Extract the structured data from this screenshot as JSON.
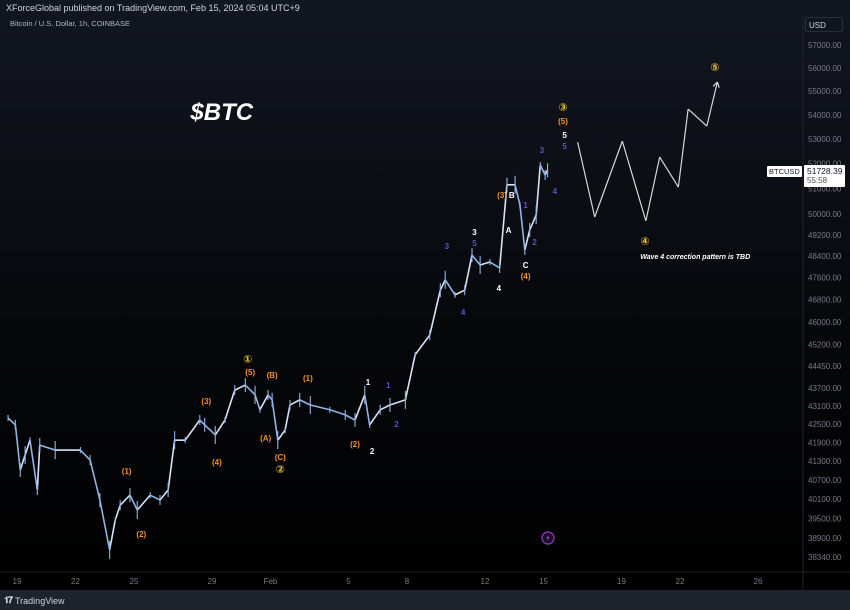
{
  "header": {
    "published": "XForceGlobal published on TradingView.com, Feb 15, 2024 05:04 UTC+9",
    "symbol": "Bitcoin / U.S. Dollar, 1h, COINBASE"
  },
  "price_axis": {
    "currency": "USD"
  },
  "last_price": {
    "symbol": "BTCUSD",
    "price": "51728.39",
    "countdown": "55:58"
  },
  "footer": {
    "brand": "TradingView"
  },
  "colors": {
    "price": "#8fb4e6",
    "orange": "#f0922f",
    "yellow": "#e3c02c",
    "purple": "#5b52c9",
    "white": "#ffffff",
    "projection": "#d8d8d8"
  },
  "chart_data": {
    "type": "line",
    "title": "$BTC",
    "y_scale": "log",
    "ylim": [
      38000,
      57500
    ],
    "grid": false,
    "y_ticks": [
      "57000.00",
      "56000.00",
      "55000.00",
      "54000.00",
      "53000.00",
      "52000.00",
      "51000.00",
      "50000.00",
      "49200.00",
      "48400.00",
      "47600.00",
      "46800.00",
      "46000.00",
      "45200.00",
      "44450.00",
      "43700.00",
      "43100.00",
      "42500.00",
      "41900.00",
      "41300.00",
      "40700.00",
      "40100.00",
      "39500.00",
      "38900.00",
      "38340.00"
    ],
    "x_ticks": [
      {
        "label": "19",
        "date": "2024-01-19"
      },
      {
        "label": "22",
        "date": "2024-01-22"
      },
      {
        "label": "25",
        "date": "2024-01-25"
      },
      {
        "label": "29",
        "date": "2024-01-29"
      },
      {
        "label": "Feb",
        "date": "2024-02-01"
      },
      {
        "label": "5",
        "date": "2024-02-05"
      },
      {
        "label": "8",
        "date": "2024-02-08"
      },
      {
        "label": "12",
        "date": "2024-02-12"
      },
      {
        "label": "15",
        "date": "2024-02-15"
      },
      {
        "label": "19",
        "date": "2024-02-19"
      },
      {
        "label": "22",
        "date": "2024-02-22"
      },
      {
        "label": "26",
        "date": "2024-02-26"
      }
    ],
    "series": [
      {
        "points": [
          [
            "2024-01-18 13:00",
            42700
          ],
          [
            "2024-01-18 22:00",
            42470
          ],
          [
            "2024-01-19 04:00",
            41010
          ],
          [
            "2024-01-19 10:00",
            41490
          ],
          [
            "2024-01-19 16:00",
            41970
          ],
          [
            "2024-01-20 01:00",
            40380
          ],
          [
            "2024-01-20 04:00",
            41810
          ],
          [
            "2024-01-20 23:00",
            41650
          ],
          [
            "2024-01-22 06:00",
            41650
          ],
          [
            "2024-01-22 18:00",
            41330
          ],
          [
            "2024-01-23 06:00",
            40070
          ],
          [
            "2024-01-23 18:00",
            38550
          ],
          [
            "2024-01-24 01:00",
            39460
          ],
          [
            "2024-01-24 07:00",
            39910
          ],
          [
            "2024-01-24 19:00",
            40220
          ],
          [
            "2024-01-25 04:00",
            39760
          ],
          [
            "2024-01-25 20:00",
            40220
          ],
          [
            "2024-01-26 08:00",
            40070
          ],
          [
            "2024-01-26 18:00",
            40380
          ],
          [
            "2024-01-27 02:00",
            41970
          ],
          [
            "2024-01-27 15:00",
            41970
          ],
          [
            "2024-01-28 09:00",
            42630
          ],
          [
            "2024-01-28 15:00",
            42470
          ],
          [
            "2024-01-29 04:00",
            42140
          ],
          [
            "2024-01-29 16:00",
            42630
          ],
          [
            "2024-01-30 04:00",
            43630
          ],
          [
            "2024-01-30 17:00",
            43800
          ],
          [
            "2024-01-31 05:00",
            43470
          ],
          [
            "2024-01-31 11:00",
            42970
          ],
          [
            "2024-01-31 21:00",
            43470
          ],
          [
            "2024-02-01 02:00",
            43300
          ],
          [
            "2024-02-01 09:00",
            41970
          ],
          [
            "2024-02-01 18:00",
            42300
          ],
          [
            "2024-02-02 00:00",
            43130
          ],
          [
            "2024-02-02 12:00",
            43300
          ],
          [
            "2024-02-03 01:00",
            43130
          ],
          [
            "2024-02-04 01:00",
            42970
          ],
          [
            "2024-02-04 20:00",
            42800
          ],
          [
            "2024-02-05 08:00",
            42630
          ],
          [
            "2024-02-05 20:00",
            43470
          ],
          [
            "2024-02-06 02:00",
            42470
          ],
          [
            "2024-02-06 15:00",
            42970
          ],
          [
            "2024-02-07 03:00",
            43130
          ],
          [
            "2024-02-07 22:00",
            43300
          ],
          [
            "2024-02-08 10:00",
            44840
          ],
          [
            "2024-02-09 04:00",
            45530
          ],
          [
            "2024-02-09 17:00",
            47140
          ],
          [
            "2024-02-09 23:00",
            47520
          ],
          [
            "2024-02-10 11:00",
            46970
          ],
          [
            "2024-02-10 23:00",
            47140
          ],
          [
            "2024-02-11 08:00",
            48440
          ],
          [
            "2024-02-11 18:00",
            48070
          ],
          [
            "2024-02-12 06:00",
            48180
          ],
          [
            "2024-02-12 18:00",
            47960
          ],
          [
            "2024-02-13 03:00",
            51150
          ],
          [
            "2024-02-13 13:00",
            51150
          ],
          [
            "2024-02-13 19:00",
            50360
          ],
          [
            "2024-02-14 01:00",
            48630
          ],
          [
            "2024-02-14 07:00",
            49390
          ],
          [
            "2024-02-14 15:00",
            49970
          ],
          [
            "2024-02-14 20:00",
            51940
          ],
          [
            "2024-02-15 02:00",
            51540
          ],
          [
            "2024-02-15 05:00",
            51728.39
          ]
        ]
      }
    ],
    "projection": [
      [
        "2024-02-16 18:00",
        52870
      ],
      [
        "2024-02-17 15:00",
        49890
      ],
      [
        "2024-02-19 01:00",
        52910
      ],
      [
        "2024-02-20 06:00",
        49740
      ],
      [
        "2024-02-20 23:00",
        52260
      ],
      [
        "2024-02-21 22:00",
        51060
      ],
      [
        "2024-02-22 10:00",
        54240
      ],
      [
        "2024-02-23 09:00",
        53530
      ],
      [
        "2024-02-23 22:00",
        55390
      ]
    ],
    "annotations": [
      {
        "text": "$BTC",
        "color": "white",
        "date": "2024-01-29 12:00",
        "price": 54120,
        "style": "title"
      },
      {
        "text": "(1)",
        "color": "orange",
        "date": "2024-01-24 15:00",
        "price": 40980
      },
      {
        "text": "(2)",
        "color": "orange",
        "date": "2024-01-25 09:00",
        "price": 39030
      },
      {
        "text": "(3)",
        "color": "orange",
        "date": "2024-01-28 17:00",
        "price": 43260
      },
      {
        "text": "(4)",
        "color": "orange",
        "date": "2024-01-29 06:00",
        "price": 41270
      },
      {
        "text": "①",
        "color": "yellow",
        "date": "2024-01-30 20:00",
        "price": 44690
      },
      {
        "text": "(5)",
        "color": "orange",
        "date": "2024-01-30 23:00",
        "price": 44240
      },
      {
        "text": "(B)",
        "color": "orange",
        "date": "2024-02-01 02:00",
        "price": 44150
      },
      {
        "text": "(A)",
        "color": "orange",
        "date": "2024-01-31 18:00",
        "price": 42040
      },
      {
        "text": "(C)",
        "color": "orange",
        "date": "2024-02-01 12:00",
        "price": 41430
      },
      {
        "text": "②",
        "color": "yellow",
        "date": "2024-02-01 12:00",
        "price": 41040
      },
      {
        "text": "(1)",
        "color": "orange",
        "date": "2024-02-02 22:00",
        "price": 44040
      },
      {
        "text": "(2)",
        "color": "orange",
        "date": "2024-02-05 08:00",
        "price": 41840
      },
      {
        "text": "1",
        "color": "white",
        "date": "2024-02-06 00:00",
        "price": 43910
      },
      {
        "text": "2",
        "color": "white",
        "date": "2024-02-06 05:00",
        "price": 41620
      },
      {
        "text": "1",
        "color": "purple",
        "date": "2024-02-07 01:00",
        "price": 43800
      },
      {
        "text": "2",
        "color": "purple",
        "date": "2024-02-07 11:00",
        "price": 42500
      },
      {
        "text": "3",
        "color": "purple",
        "date": "2024-02-10 01:00",
        "price": 48780
      },
      {
        "text": "4",
        "color": "purple",
        "date": "2024-02-10 21:00",
        "price": 46350
      },
      {
        "text": "3",
        "color": "white",
        "date": "2024-02-11 11:00",
        "price": 49310
      },
      {
        "text": "5",
        "color": "purple",
        "date": "2024-02-11 11:00",
        "price": 48890
      },
      {
        "text": "4",
        "color": "white",
        "date": "2024-02-12 17:00",
        "price": 47220
      },
      {
        "text": "(3)",
        "color": "orange",
        "date": "2024-02-12 21:00",
        "price": 50750
      },
      {
        "text": "B",
        "color": "white",
        "date": "2024-02-13 09:00",
        "price": 50750
      },
      {
        "text": "A",
        "color": "white",
        "date": "2024-02-13 05:00",
        "price": 49390
      },
      {
        "text": "1",
        "color": "purple",
        "date": "2024-02-14 02:00",
        "price": 50360
      },
      {
        "text": "2",
        "color": "purple",
        "date": "2024-02-14 13:00",
        "price": 48930
      },
      {
        "text": "C",
        "color": "white",
        "date": "2024-02-14 02:00",
        "price": 48070
      },
      {
        "text": "(4)",
        "color": "orange",
        "date": "2024-02-14 02:00",
        "price": 47660
      },
      {
        "text": "3",
        "color": "purple",
        "date": "2024-02-14 22:00",
        "price": 52550
      },
      {
        "text": "4",
        "color": "purple",
        "date": "2024-02-15 14:00",
        "price": 50910
      },
      {
        "text": "5",
        "color": "purple",
        "date": "2024-02-16 02:00",
        "price": 52710
      },
      {
        "text": "5",
        "color": "white",
        "date": "2024-02-16 02:00",
        "price": 53160
      },
      {
        "text": "(5)",
        "color": "orange",
        "date": "2024-02-16 00:00",
        "price": 53740
      },
      {
        "text": "③",
        "color": "yellow",
        "date": "2024-02-16 00:00",
        "price": 54330
      },
      {
        "text": "④",
        "color": "yellow",
        "date": "2024-02-20 05:00",
        "price": 48970
      },
      {
        "text": "Wave 4 correction pattern is TBD",
        "color": "white",
        "date": "2024-02-19 23:00",
        "price": 48400,
        "style": "note"
      },
      {
        "text": "⑤",
        "color": "yellow",
        "date": "2024-02-23 19:00",
        "price": 56040
      }
    ]
  }
}
